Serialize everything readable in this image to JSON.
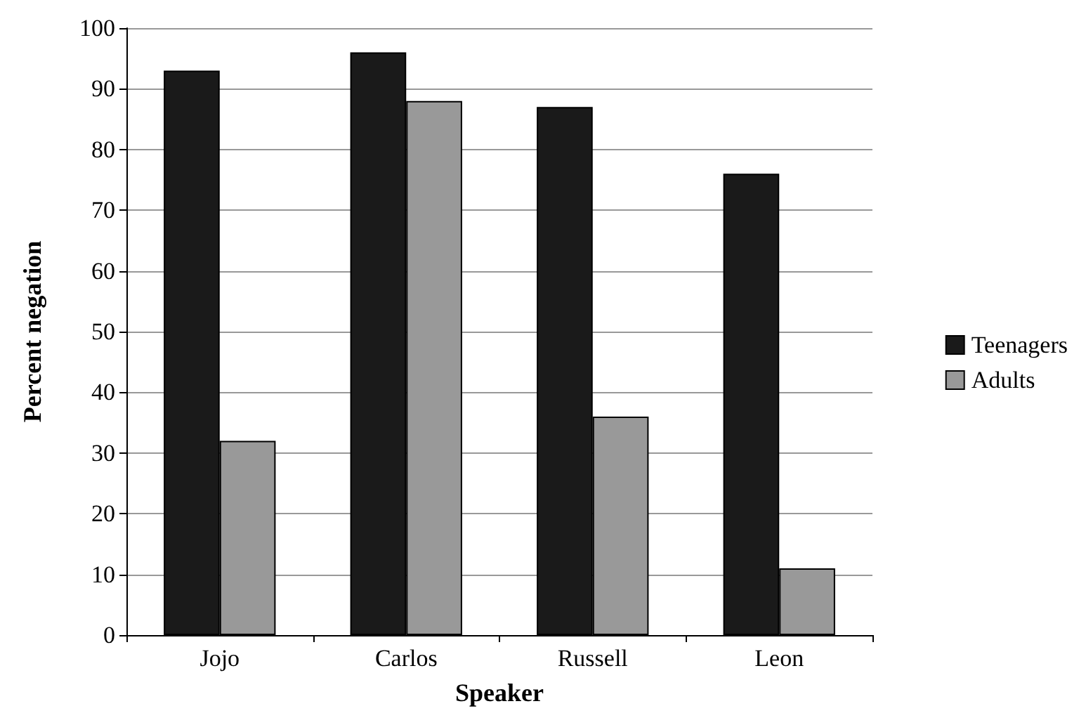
{
  "chart_data": {
    "type": "bar",
    "xlabel": "Speaker",
    "ylabel": "Percent negation",
    "categories": [
      "Jojo",
      "Carlos",
      "Russell",
      "Leon"
    ],
    "series": [
      {
        "name": "Teenagers",
        "color": "#1a1a1a",
        "values": [
          93,
          96,
          87,
          76
        ]
      },
      {
        "name": "Adults",
        "color": "#999999",
        "values": [
          32,
          88,
          36,
          11
        ]
      }
    ],
    "ylim": [
      0,
      100
    ],
    "yticks": [
      0,
      10,
      20,
      30,
      40,
      50,
      60,
      70,
      80,
      90,
      100
    ],
    "grid": "y",
    "legend": "right"
  }
}
